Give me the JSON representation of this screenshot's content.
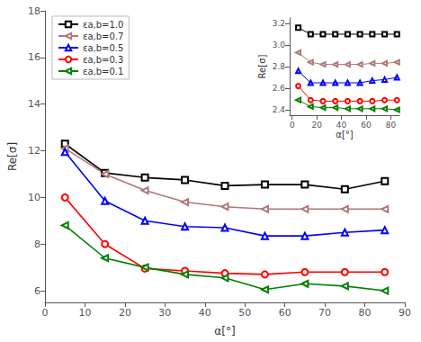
{
  "chart_data": [
    {
      "type": "line",
      "xlabel": "α[°]",
      "ylabel": "Re[σ]",
      "xlim": [
        0,
        90
      ],
      "ylim": [
        5.5,
        18
      ],
      "xticks": [
        0,
        10,
        20,
        30,
        40,
        50,
        60,
        70,
        80,
        90
      ],
      "yticks": [
        6,
        8,
        10,
        12,
        14,
        16,
        18
      ],
      "grid": false,
      "legend": "upper left",
      "series": [
        {
          "name": "εa,b=1.0",
          "color": "black",
          "marker": "square",
          "x": [
            5,
            15,
            25,
            35,
            45,
            55,
            65,
            75,
            85
          ],
          "values": [
            12.3,
            11.05,
            10.85,
            10.75,
            10.5,
            10.55,
            10.55,
            10.35,
            10.7
          ]
        },
        {
          "name": "εa,b=0.7",
          "color": "#b07878",
          "marker": "triangle_left",
          "x": [
            5,
            15,
            25,
            35,
            45,
            55,
            65,
            75,
            85
          ],
          "values": [
            12.1,
            11.0,
            10.3,
            9.8,
            9.6,
            9.5,
            9.5,
            9.5,
            9.5
          ]
        },
        {
          "name": "εa,b=0.5",
          "color": "blue",
          "marker": "triangle_up",
          "x": [
            5,
            15,
            25,
            35,
            45,
            55,
            65,
            75,
            85
          ],
          "values": [
            11.95,
            9.85,
            9.0,
            8.75,
            8.7,
            8.35,
            8.35,
            8.5,
            8.6
          ]
        },
        {
          "name": "εa,b=0.3",
          "color": "red",
          "marker": "circle",
          "x": [
            5,
            15,
            25,
            35,
            45,
            55,
            65,
            75,
            85
          ],
          "values": [
            10.0,
            8.0,
            6.95,
            6.85,
            6.75,
            6.7,
            6.8,
            6.8,
            6.8
          ]
        },
        {
          "name": "εa,b=0.1",
          "color": "green",
          "marker": "triangle_left",
          "x": [
            5,
            15,
            25,
            35,
            45,
            55,
            65,
            75,
            85
          ],
          "values": [
            8.8,
            7.4,
            7.0,
            6.7,
            6.55,
            6.05,
            6.3,
            6.2,
            6.0
          ]
        }
      ]
    },
    {
      "type": "line",
      "xlabel": "α[°]",
      "ylabel": "Re[σ]",
      "xlim": [
        -2,
        87
      ],
      "ylim": [
        2.35,
        3.25
      ],
      "xticks": [
        0,
        20,
        40,
        60,
        80
      ],
      "yticks": [
        2.4,
        2.6,
        2.8,
        {
          "value": 3.0,
          "label": "3.0"
        },
        3.2
      ],
      "grid": false,
      "series": [
        {
          "name": "εa,b=1.0",
          "color": "black",
          "marker": "square",
          "x": [
            5,
            15,
            25,
            35,
            45,
            55,
            65,
            75,
            85
          ],
          "values": [
            3.16,
            3.1,
            3.1,
            3.1,
            3.1,
            3.1,
            3.1,
            3.1,
            3.1
          ]
        },
        {
          "name": "εa,b=0.7",
          "color": "#b07878",
          "marker": "triangle_left",
          "x": [
            5,
            15,
            25,
            35,
            45,
            55,
            65,
            75,
            85
          ],
          "values": [
            2.93,
            2.84,
            2.82,
            2.82,
            2.82,
            2.82,
            2.83,
            2.83,
            2.84
          ]
        },
        {
          "name": "εa,b=0.5",
          "color": "blue",
          "marker": "triangle_up",
          "x": [
            5,
            15,
            25,
            35,
            45,
            55,
            65,
            75,
            85
          ],
          "values": [
            2.76,
            2.65,
            2.65,
            2.65,
            2.65,
            2.65,
            2.67,
            2.68,
            2.7
          ]
        },
        {
          "name": "εa,b=0.3",
          "color": "red",
          "marker": "circle",
          "x": [
            5,
            15,
            25,
            35,
            45,
            55,
            65,
            75,
            85
          ],
          "values": [
            2.62,
            2.49,
            2.48,
            2.48,
            2.48,
            2.48,
            2.48,
            2.49,
            2.49
          ]
        },
        {
          "name": "εa,b=0.1",
          "color": "green",
          "marker": "triangle_left",
          "x": [
            5,
            15,
            25,
            35,
            45,
            55,
            65,
            75,
            85
          ],
          "values": [
            2.49,
            2.43,
            2.42,
            2.42,
            2.41,
            2.41,
            2.41,
            2.41,
            2.4
          ]
        }
      ]
    }
  ]
}
